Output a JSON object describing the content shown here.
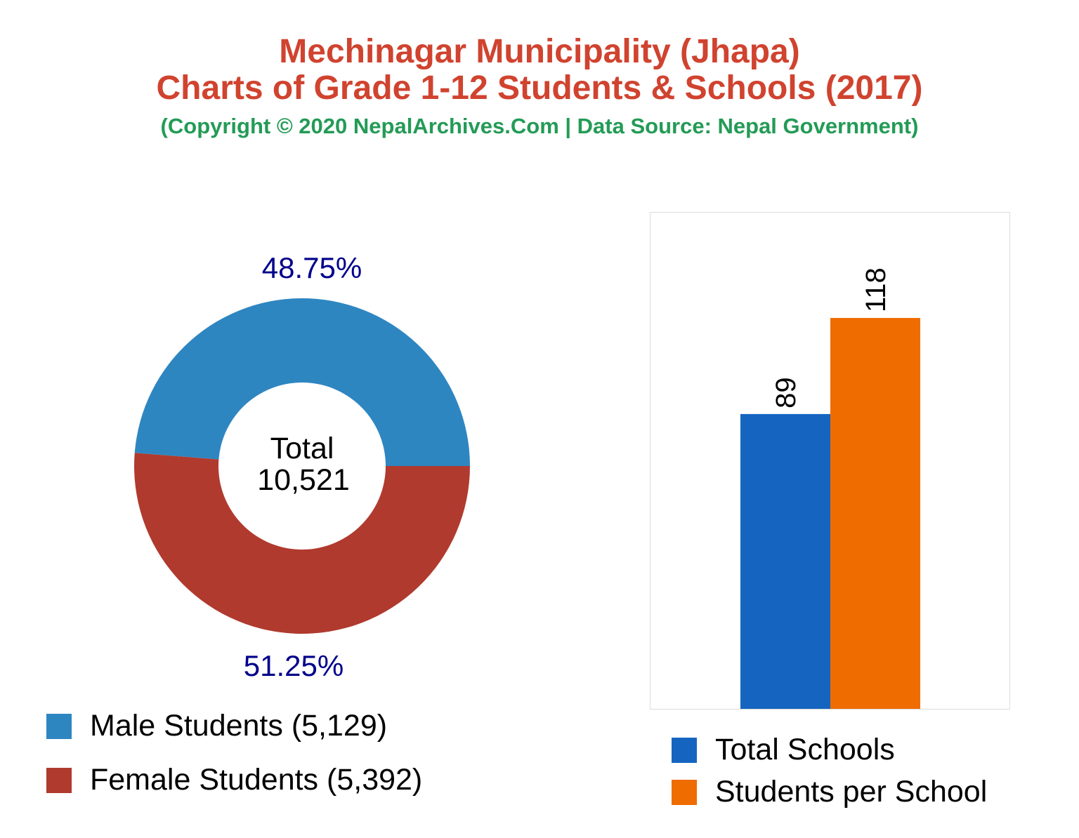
{
  "title_line1": "Mechinagar Municipality (Jhapa)",
  "title_line2": "Charts of Grade 1-12 Students & Schools (2017)",
  "subtitle": "(Copyright © 2020 NepalArchives.Com | Data Source: Nepal Government)",
  "colors": {
    "title": "#D0432F",
    "subtitle": "#239B56",
    "percent_label": "#00008B"
  },
  "chart_data": [
    {
      "type": "pie",
      "style": "donut",
      "center_label": [
        "Total",
        "10,521"
      ],
      "slices": [
        {
          "name": "Male Students",
          "value": 5129,
          "label": "48.75%",
          "legend": "Male Students (5,129)",
          "color": "#2E86C1"
        },
        {
          "name": "Female Students",
          "value": 5392,
          "label": "51.25%",
          "legend": "Female Students (5,392)",
          "color": "#B03A2E"
        }
      ],
      "legend_placement": "bottom-left"
    },
    {
      "type": "bar",
      "categories": [
        "Total Schools",
        "Students per School"
      ],
      "values": [
        89,
        118
      ],
      "data_labels": [
        "89",
        "118"
      ],
      "colors": [
        "#1565C0",
        "#EF6C00"
      ],
      "ylim": [
        0,
        150
      ],
      "grid": false,
      "legend": [
        "Total Schools",
        "Students per School"
      ],
      "legend_placement": "bottom"
    }
  ]
}
